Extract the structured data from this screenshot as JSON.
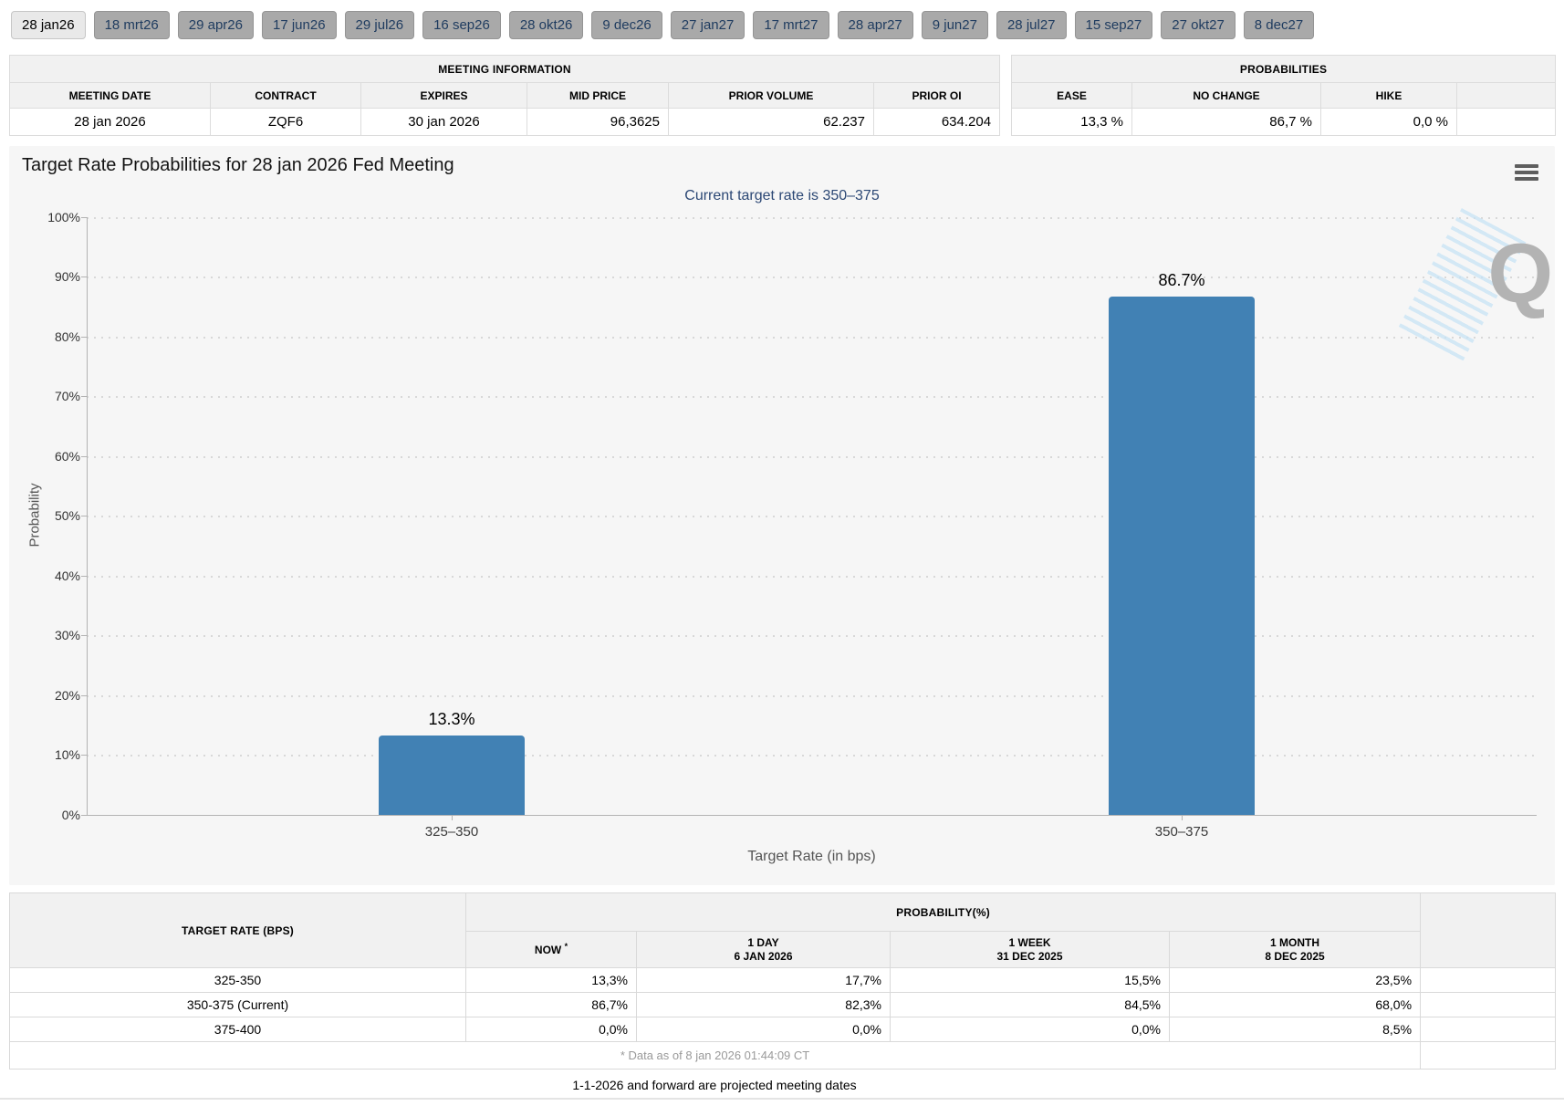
{
  "tabs": {
    "items": [
      "28 jan26",
      "18 mrt26",
      "29 apr26",
      "17 jun26",
      "29 jul26",
      "16 sep26",
      "28 okt26",
      "9 dec26",
      "27 jan27",
      "17 mrt27",
      "28 apr27",
      "9 jun27",
      "28 jul27",
      "15 sep27",
      "27 okt27",
      "8 dec27"
    ],
    "active": "28 jan26"
  },
  "meeting_info": {
    "title": "MEETING INFORMATION",
    "columns": [
      "MEETING DATE",
      "CONTRACT",
      "EXPIRES",
      "MID PRICE",
      "PRIOR VOLUME",
      "PRIOR OI"
    ],
    "values": [
      "28 jan 2026",
      "ZQF6",
      "30 jan 2026",
      "96,3625",
      "62.237",
      "634.204"
    ]
  },
  "probabilities": {
    "title": "PROBABILITIES",
    "columns": [
      "EASE",
      "NO CHANGE",
      "HIKE"
    ],
    "values": [
      "13,3 %",
      "86,7 %",
      "0,0 %"
    ]
  },
  "chart": {
    "title": "Target Rate Probabilities for 28 jan 2026 Fed Meeting",
    "subtitle": "Current target rate is 350–375",
    "y_axis_title": "Probability",
    "x_axis_title": "Target Rate (in bps)",
    "yticks": [
      "100%",
      "90%",
      "80%",
      "70%",
      "60%",
      "50%",
      "40%",
      "30%",
      "20%",
      "10%",
      "0%"
    ],
    "menu_icon": "hamburger-icon",
    "watermark_letter": "Q",
    "bar_color": "#4181b4",
    "subtitle_color": "#2c4875"
  },
  "chart_data": {
    "type": "bar",
    "categories": [
      "325–350",
      "350–375"
    ],
    "values": [
      13.3,
      86.7
    ],
    "bar_labels": [
      "13.3%",
      "86.7%"
    ],
    "title": "Target Rate Probabilities for 28 jan 2026 Fed Meeting",
    "subtitle": "Current target rate is 350–375",
    "xlabel": "Target Rate (in bps)",
    "ylabel": "Probability",
    "ylim": [
      0,
      100
    ],
    "grid": "dotted horizontal, 10% steps",
    "legend": "none"
  },
  "history_table": {
    "rate_header": "TARGET RATE (BPS)",
    "group_header": "PROBABILITY(%)",
    "now_label": "NOW",
    "now_sup": "*",
    "col_1day_l1": "1 DAY",
    "col_1day_l2": "6 JAN 2026",
    "col_1week_l1": "1 WEEK",
    "col_1week_l2": "31 DEC 2025",
    "col_1month_l1": "1 MONTH",
    "col_1month_l2": "8 DEC 2025",
    "rows": [
      {
        "rate": "325-350",
        "now": "13,3%",
        "day": "17,7%",
        "week": "15,5%",
        "month": "23,5%"
      },
      {
        "rate": "350-375 (Current)",
        "now": "86,7%",
        "day": "82,3%",
        "week": "84,5%",
        "month": "68,0%"
      },
      {
        "rate": "375-400",
        "now": "0,0%",
        "day": "0,0%",
        "week": "0,0%",
        "month": "8,5%"
      }
    ],
    "footnote": "* Data as of 8 jan 2026 01:44:09 CT",
    "now_highlight": "#f8f8dd"
  },
  "footer_note": "1-1-2026 and forward are projected meeting dates"
}
